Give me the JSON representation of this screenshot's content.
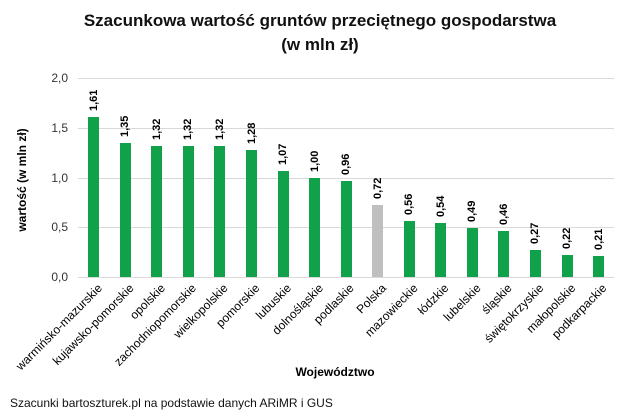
{
  "title_line1": "Szacunkowa wartość gruntów przeciętnego gospodarstwa",
  "title_line2": "(w mln zł)",
  "ylabel": "wartość (w mln zł)",
  "xlabel": "Województwo",
  "source": "Szacunki bartoszturek.pl na podstawie danych ARiMR i GUS",
  "colors": {
    "bar": "#12A14B",
    "highlight": "#BFBFBF",
    "grid": "#D9D9D9"
  },
  "chart_data": {
    "type": "bar",
    "title": "Szacunkowa wartość gruntów przeciętnego gospodarstwa (w mln zł)",
    "xlabel": "Województwo",
    "ylabel": "wartość (w mln zł)",
    "ylim": [
      0,
      2.0
    ],
    "yticks": [
      "0,0",
      "0,5",
      "1,0",
      "1,5",
      "2,0"
    ],
    "grid": true,
    "legend": "none",
    "categories": [
      "warmińsko-mazurskie",
      "kujawsko-pomorskie",
      "opolskie",
      "zachodniopomorskie",
      "wielkopolskie",
      "pomorskie",
      "lubuskie",
      "dolnośląskie",
      "podlaskie",
      "Polska",
      "mazowieckie",
      "łódzkie",
      "lubelskie",
      "śląskie",
      "świętokrzyskie",
      "małopolskie",
      "podkarpackie"
    ],
    "values": [
      1.61,
      1.35,
      1.32,
      1.32,
      1.32,
      1.28,
      1.07,
      1.0,
      0.96,
      0.72,
      0.56,
      0.54,
      0.49,
      0.46,
      0.27,
      0.22,
      0.21
    ],
    "value_labels": [
      "1,61",
      "1,35",
      "1,32",
      "1,32",
      "1,32",
      "1,28",
      "1,07",
      "1,00",
      "0,96",
      "0,72",
      "0,56",
      "0,54",
      "0,49",
      "0,46",
      "0,27",
      "0,22",
      "0,21"
    ],
    "highlighted_category": "Polska"
  }
}
